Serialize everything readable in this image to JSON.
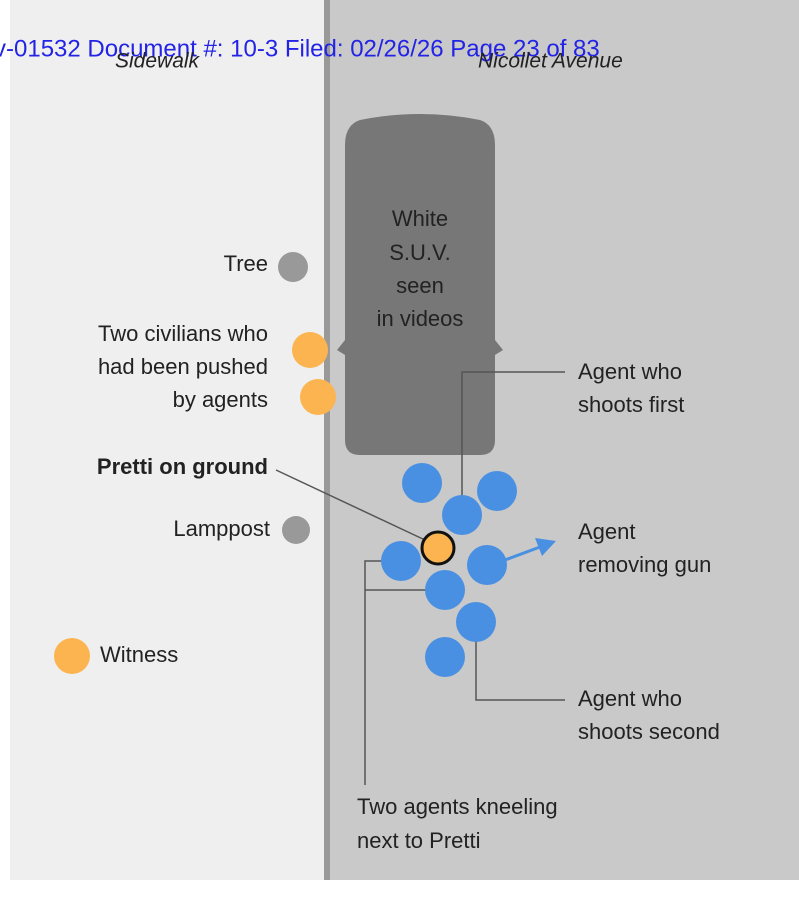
{
  "header": {
    "stamp": "v-01532 Document #: 10-3 Filed: 02/26/26 Page 23 of 83"
  },
  "areas": {
    "left": "Sidewalk",
    "right": "Nicollet Avenue"
  },
  "vehicle": {
    "label": [
      "White",
      "S.U.V.",
      "seen",
      "in videos"
    ]
  },
  "labels": {
    "tree": "Tree",
    "civilians": [
      "Two civilians who",
      "had been pushed",
      "by agents"
    ],
    "pretti": "Pretti on ground",
    "lamppost": "Lamppost",
    "witness": "Witness",
    "shoots_first": [
      "Agent who",
      "shoots first"
    ],
    "removing_gun": [
      "Agent",
      "removing gun"
    ],
    "shoots_second": [
      "Agent who",
      "shoots second"
    ],
    "kneeling": [
      "Two agents kneeling",
      "next to Pretti"
    ]
  }
}
